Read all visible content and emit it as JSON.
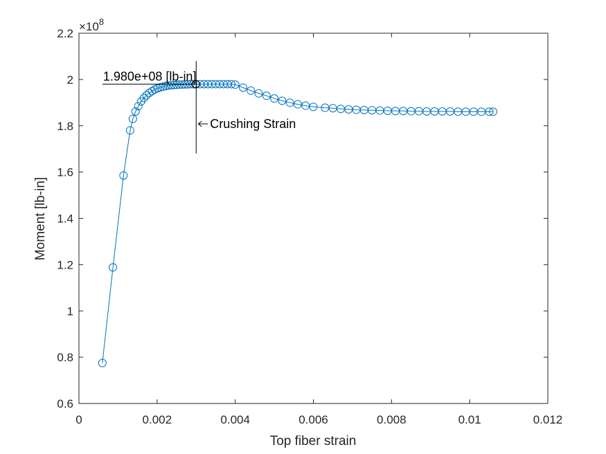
{
  "chart_data": {
    "type": "line",
    "title": "",
    "xlabel": "Top fiber strain",
    "ylabel": "Moment [lb-in]",
    "y_exponent_label": "×10",
    "y_exponent_power": "8",
    "xlim": [
      0,
      0.012
    ],
    "ylim": [
      0.6,
      2.2
    ],
    "grid": false,
    "x_ticks": [
      0,
      0.002,
      0.004,
      0.006,
      0.008,
      0.01,
      0.012
    ],
    "x_tick_labels": [
      "0",
      "0.002",
      "0.004",
      "0.006",
      "0.008",
      "0.01",
      "0.012"
    ],
    "y_ticks": [
      0.6,
      0.8,
      1,
      1.2,
      1.4,
      1.6,
      1.8,
      2,
      2.2
    ],
    "y_tick_labels": [
      "0.6",
      "0.8",
      "1",
      "1.2",
      "1.4",
      "1.6",
      "1.8",
      "2",
      "2.2"
    ],
    "series": [
      {
        "marker": "circle",
        "color": "#0072BD",
        "x": [
          0.0006,
          0.00087,
          0.00114,
          0.00131,
          0.00138,
          0.00145,
          0.00152,
          0.00159,
          0.00166,
          0.00173,
          0.0018,
          0.00187,
          0.00194,
          0.00201,
          0.00208,
          0.00215,
          0.00222,
          0.00229,
          0.00236,
          0.00243,
          0.0025,
          0.00257,
          0.00264,
          0.00271,
          0.00278,
          0.00285,
          0.00292,
          0.00299,
          0.0031,
          0.0032,
          0.0033,
          0.0034,
          0.0035,
          0.0036,
          0.0037,
          0.0038,
          0.0039,
          0.004,
          0.0042,
          0.0044,
          0.0046,
          0.0048,
          0.005,
          0.0052,
          0.0054,
          0.0056,
          0.0058,
          0.006,
          0.0063,
          0.0065,
          0.0067,
          0.0069,
          0.0071,
          0.0073,
          0.0075,
          0.0077,
          0.0079,
          0.0081,
          0.0083,
          0.0085,
          0.0087,
          0.0089,
          0.0091,
          0.0093,
          0.0095,
          0.0097,
          0.0099,
          0.0101,
          0.0103,
          0.0105,
          0.0106
        ],
        "y": [
          0.775,
          1.188,
          1.585,
          1.78,
          1.83,
          1.862,
          1.885,
          1.905,
          1.92,
          1.932,
          1.942,
          1.95,
          1.957,
          1.962,
          1.966,
          1.969,
          1.972,
          1.974,
          1.975,
          1.976,
          1.977,
          1.978,
          1.978,
          1.979,
          1.979,
          1.98,
          1.98,
          1.98,
          1.98,
          1.98,
          1.98,
          1.98,
          1.98,
          1.98,
          1.98,
          1.98,
          1.98,
          1.978,
          1.965,
          1.952,
          1.94,
          1.93,
          1.918,
          1.908,
          1.9,
          1.893,
          1.887,
          1.882,
          1.878,
          1.876,
          1.873,
          1.871,
          1.869,
          1.868,
          1.867,
          1.866,
          1.865,
          1.864,
          1.864,
          1.863,
          1.863,
          1.862,
          1.862,
          1.862,
          1.862,
          1.861,
          1.861,
          1.861,
          1.861,
          1.861,
          1.861
        ]
      }
    ],
    "annotations": {
      "peak_label": "1.980e+08 [lb-in]",
      "peak_x": 0.00299,
      "peak_y": 1.98,
      "crushing_label": "Crushing Strain",
      "crushing_x": 0.003,
      "crushing_y_range": [
        1.68,
        2.08
      ]
    }
  }
}
